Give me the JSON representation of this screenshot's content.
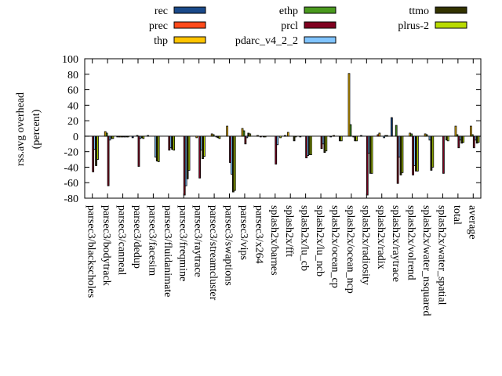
{
  "chart_data": {
    "type": "bar",
    "title": "",
    "xlabel": "",
    "ylabel": [
      "rss.avg overhead",
      "(percent)"
    ],
    "ylim": [
      -80,
      100
    ],
    "yticks": [
      -80,
      -60,
      -40,
      -20,
      0,
      20,
      40,
      60,
      80,
      100
    ],
    "grid": false,
    "legend_placement": "top",
    "categories": [
      "parsec3/blackscholes",
      "parsec3/bodytrack",
      "parsec3/canneal",
      "parsec3/dedup",
      "parsec3/facesim",
      "parsec3/fluidanimate",
      "parsec3/freqmine",
      "parsec3/raytrace",
      "parsec3/streamcluster",
      "parsec3/swaptions",
      "parsec3/vips",
      "parsec3/x264",
      "splash2x/barnes",
      "splash2x/fft",
      "splash2x/lu_cb",
      "splash2x/lu_ncb",
      "splash2x/ocean_cp",
      "splash2x/ocean_ncp",
      "splash2x/radiosity",
      "splash2x/radix",
      "splash2x/raytrace",
      "splash2x/volrend",
      "splash2x/water_nsquared",
      "splash2x/water_spatial",
      "total",
      "average"
    ],
    "series": [
      {
        "name": "rec",
        "color": "#1a4a8a",
        "values": [
          0,
          0,
          -1,
          -2,
          1,
          0,
          0,
          0,
          0,
          0,
          0,
          0,
          0,
          1,
          -1,
          0,
          -1,
          0,
          1,
          0,
          24,
          0,
          0,
          0,
          0,
          0
        ]
      },
      {
        "name": "prec",
        "color": "#ff4a1a",
        "values": [
          0,
          0,
          -1,
          0,
          0,
          0,
          0,
          0,
          0,
          0,
          0,
          0,
          0,
          0,
          0,
          0,
          0,
          0,
          0,
          2,
          0,
          0,
          0,
          0,
          0,
          0
        ]
      },
      {
        "name": "thp",
        "color": "#ffc400",
        "values": [
          0,
          6,
          -1,
          0,
          0,
          0,
          0,
          -2,
          3,
          13,
          10,
          1,
          0,
          5,
          0,
          0,
          1,
          81,
          0,
          4,
          0,
          4,
          3,
          0,
          13,
          13
        ]
      },
      {
        "name": "ethp",
        "color": "#4a9a1e",
        "values": [
          0,
          4,
          -1,
          1,
          0,
          0,
          0,
          0,
          2,
          0,
          7,
          0,
          0,
          0,
          0,
          0,
          0,
          15,
          0,
          0,
          14,
          3,
          2,
          0,
          2,
          2
        ]
      },
      {
        "name": "prcl",
        "color": "#800020",
        "values": [
          -46,
          -64,
          -1,
          -39,
          0,
          -18,
          -76,
          -54,
          0,
          -34,
          -10,
          -1,
          -36,
          0,
          -28,
          -16,
          0,
          0,
          -76,
          0,
          -61,
          -50,
          0,
          -48,
          -15,
          -15
        ]
      },
      {
        "name": "pdarc_v4_2_2",
        "color": "#80c4ff",
        "values": [
          -17,
          -5,
          -1,
          -3,
          -27,
          -15,
          -64,
          -18,
          -1,
          -49,
          -2,
          0,
          -11,
          0,
          -25,
          -10,
          0,
          -1,
          -22,
          -2,
          -27,
          -38,
          -5,
          0,
          -5,
          -5
        ]
      },
      {
        "name": "ttmo",
        "color": "#333300",
        "values": [
          -38,
          -3,
          -1,
          -2,
          -32,
          -17,
          -55,
          -29,
          -2,
          -72,
          4,
          -1,
          0,
          -6,
          -24,
          -21,
          -6,
          -6,
          -48,
          1,
          -50,
          -45,
          -44,
          -5,
          -9,
          -9
        ]
      },
      {
        "name": "plrus-2",
        "color": "#b8da00",
        "values": [
          -30,
          -3,
          -1,
          -3,
          -33,
          -18,
          -44,
          -26,
          -3,
          -70,
          3,
          -1,
          -2,
          -1,
          -24,
          -19,
          -6,
          -6,
          -48,
          1,
          -47,
          -45,
          -40,
          -6,
          -8,
          -8
        ]
      }
    ]
  }
}
